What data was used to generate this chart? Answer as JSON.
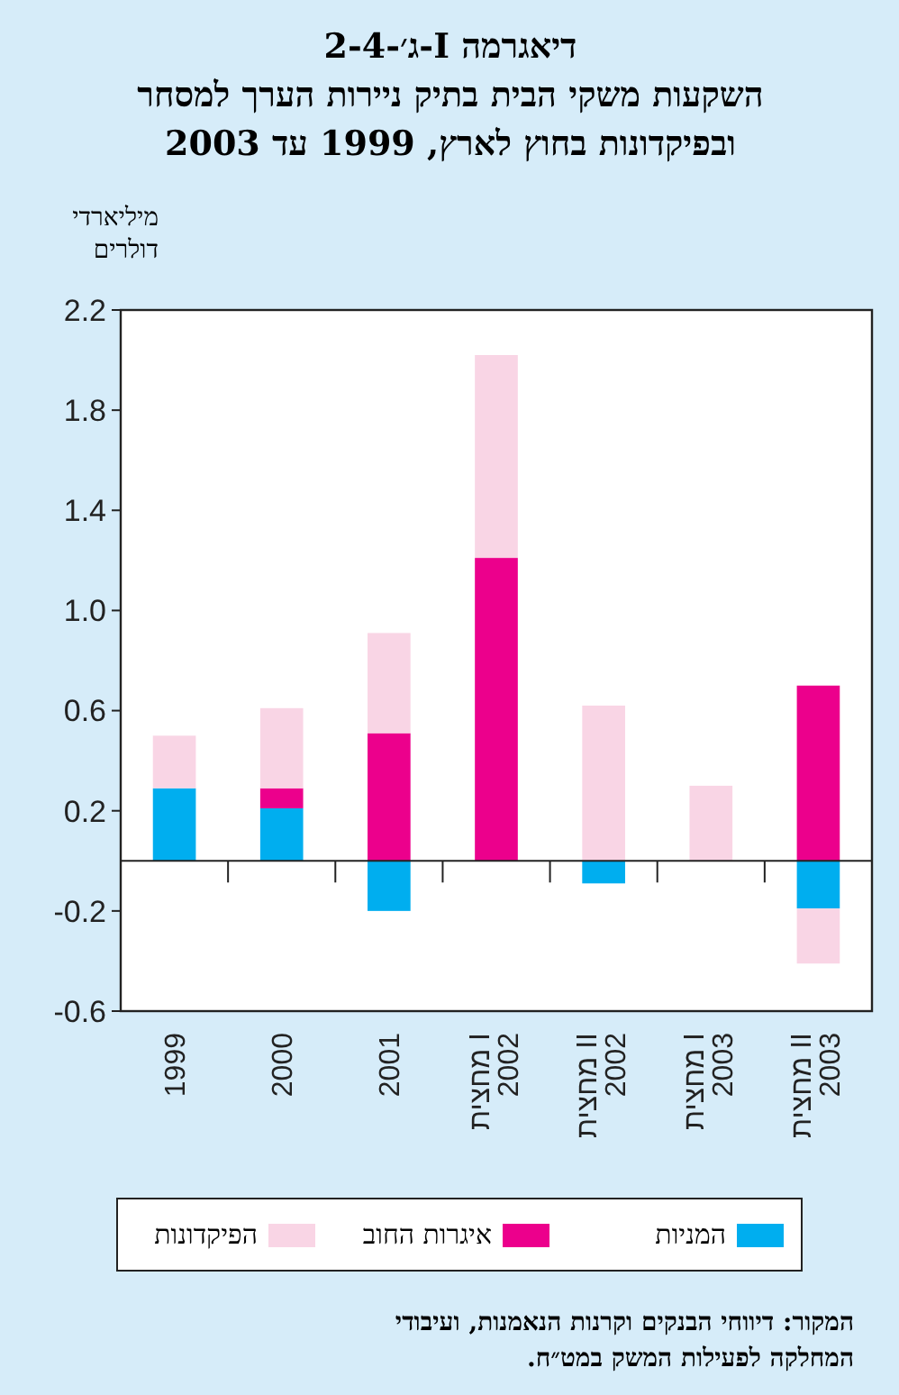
{
  "chart_data": {
    "type": "bar",
    "stacked": true,
    "title": "דיאגרמה I-ג׳-2-4",
    "subtitle": "השקעות משקי הבית בתיק ניירות הערך למסחר ובפיקדונות בחוץ לארץ, 1999 עד 2003",
    "ylabel": "מיליארדי דולרים",
    "categories": [
      "1999",
      "2000",
      "2001",
      "מחצית I 2002",
      "מחצית II 2002",
      "מחצית I 2003",
      "מחצית II 2003"
    ],
    "series": [
      {
        "name": "המניות",
        "color": "#00aeef",
        "values": [
          0.29,
          0.21,
          -0.2,
          null,
          -0.09,
          null,
          -0.19
        ]
      },
      {
        "name": "איגרות החוב",
        "color": "#ec008c",
        "values": [
          null,
          0.08,
          0.51,
          1.21,
          null,
          null,
          0.7
        ]
      },
      {
        "name": "הפיקדונות",
        "color": "#f9d5e5",
        "values": [
          0.21,
          0.32,
          0.4,
          0.81,
          0.62,
          0.3,
          -0.22
        ]
      }
    ],
    "ylim": [
      -0.6,
      2.2
    ],
    "yticks": [
      2.2,
      1.8,
      1.4,
      {
        "value": 1,
        "label": "1.0"
      },
      0.6,
      0.2,
      -0.2,
      -0.6
    ],
    "legend": "bottom",
    "annotations": [
      "המקור: דיווחי הבנקים וקרנות הנאמנות, ועיבודי המחלקה לפעילות המשק במט״ח."
    ]
  }
}
